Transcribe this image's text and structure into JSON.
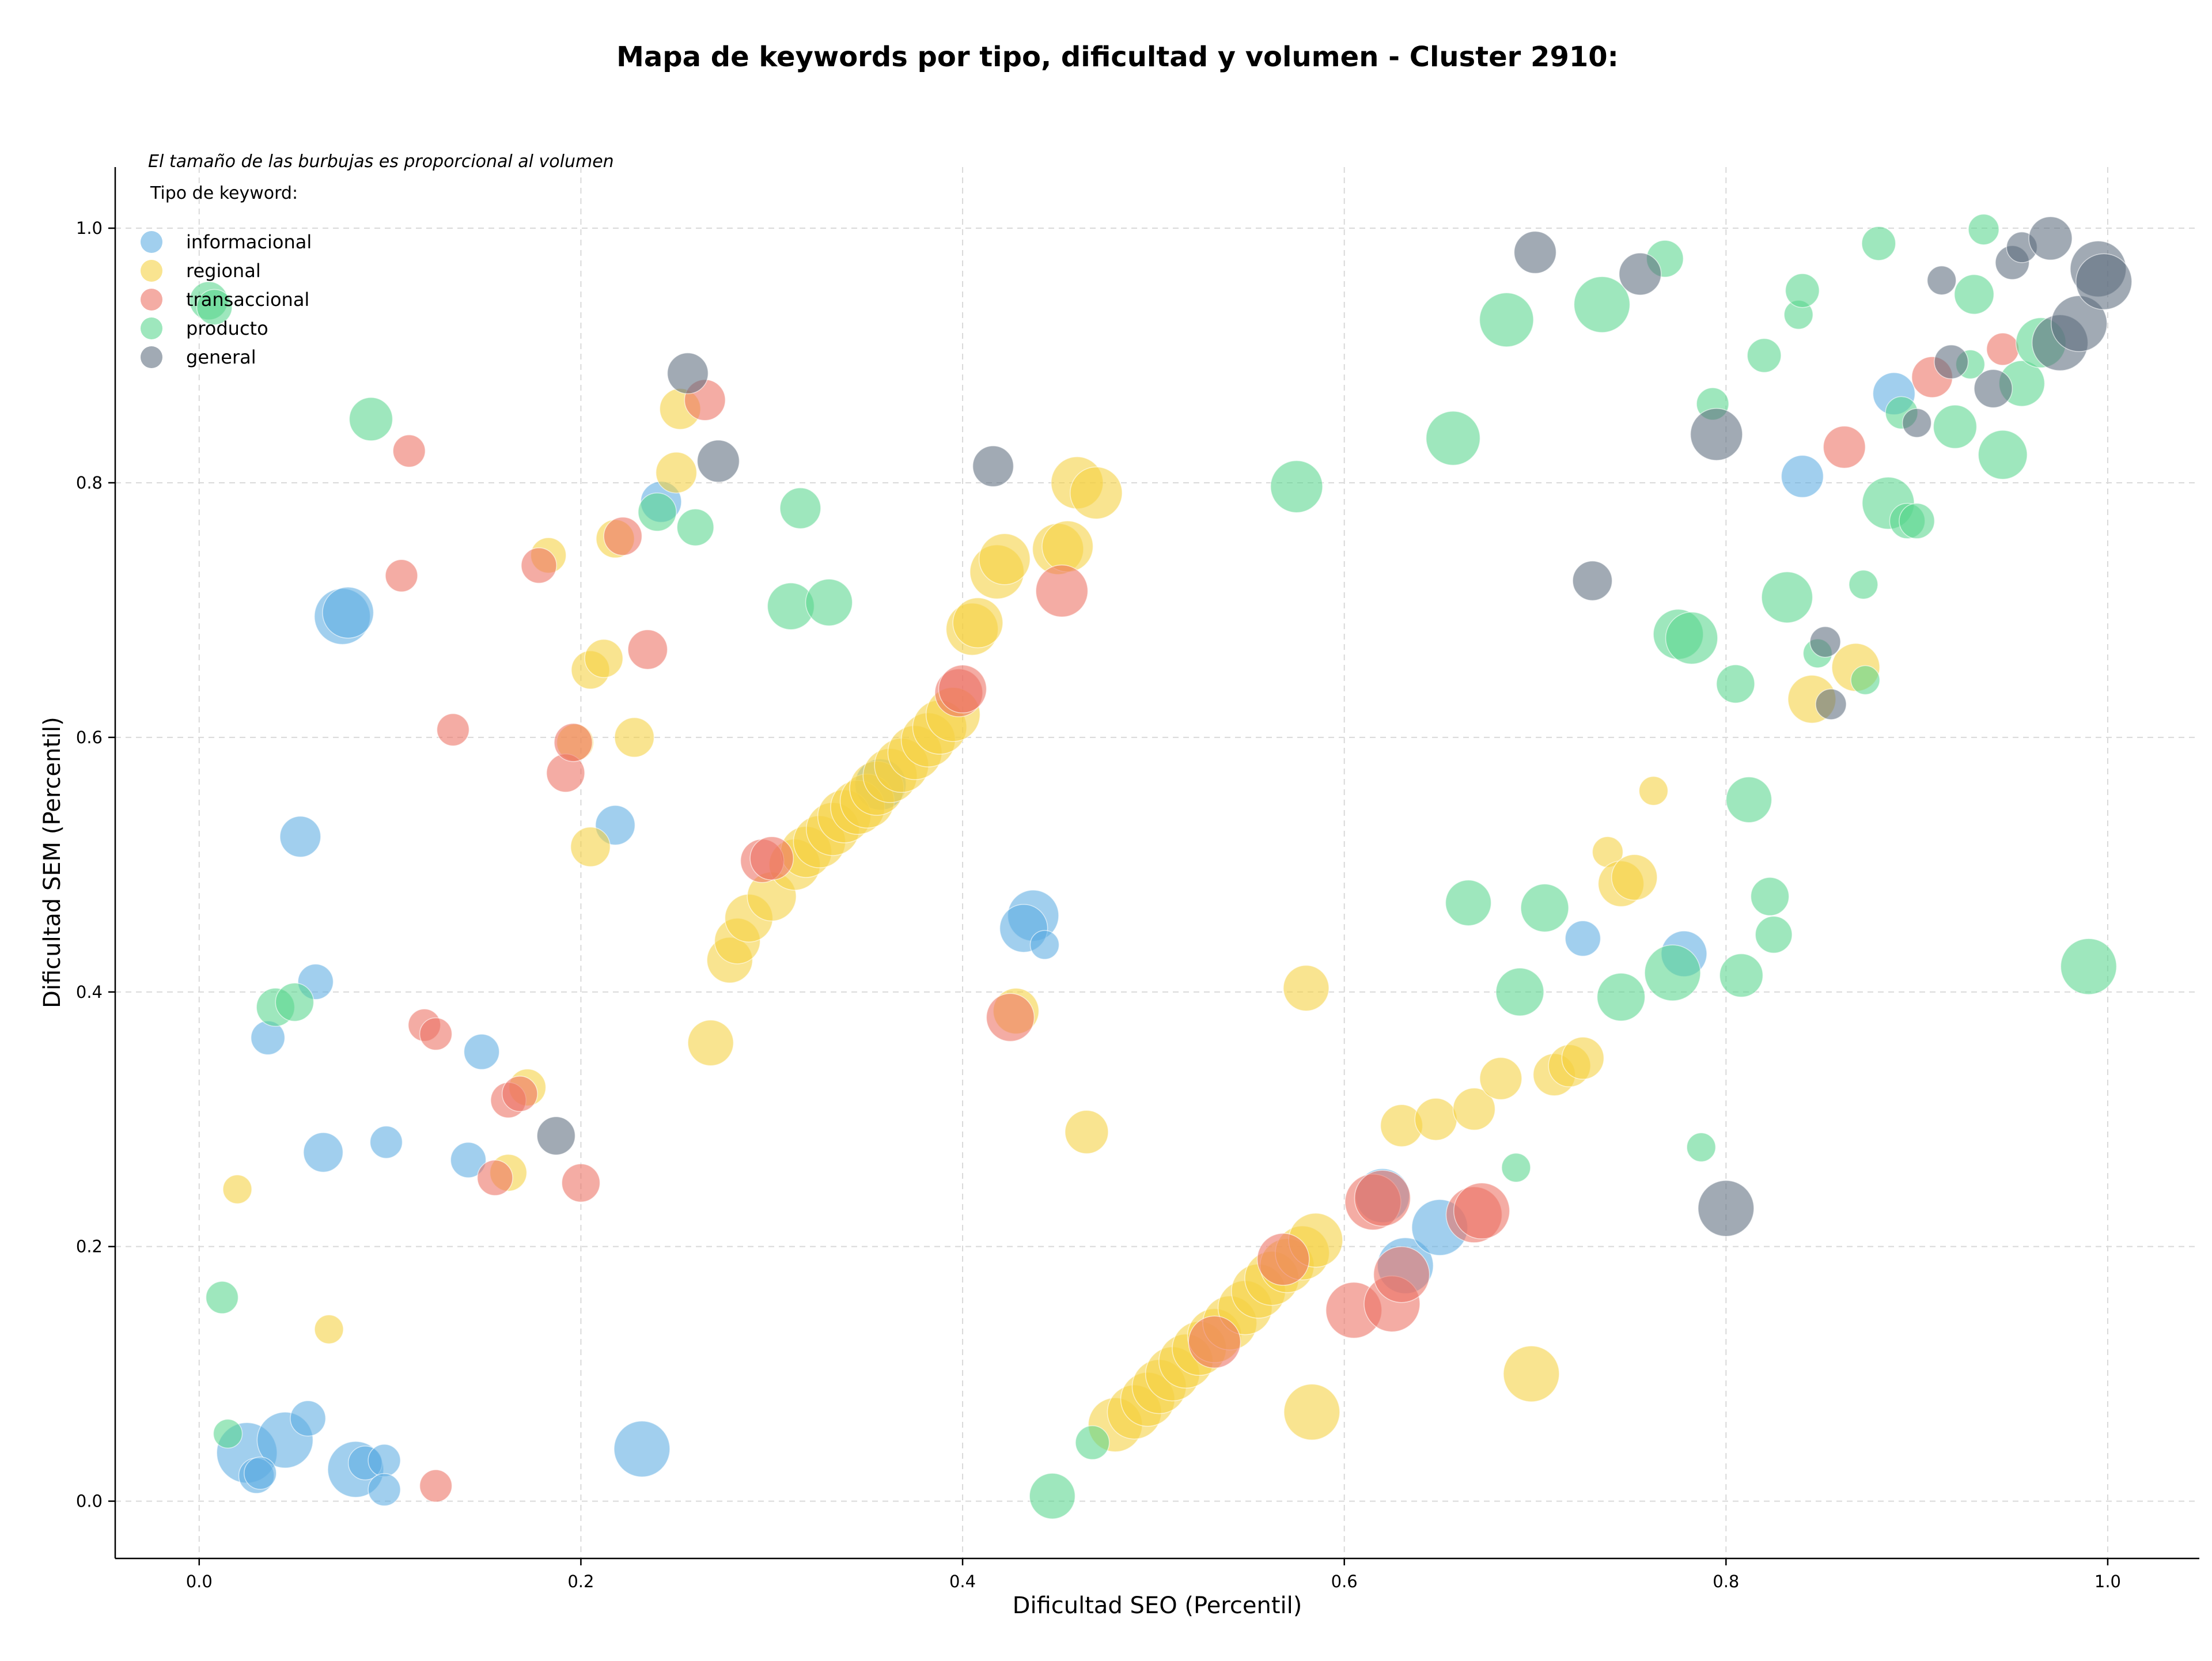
{
  "chart_data": {
    "type": "scatter",
    "title": "Mapa de keywords por tipo, dificultad y volumen - Cluster 2910:",
    "xlabel": "Dificultad SEO (Percentil)",
    "ylabel": "Dificultad SEM (Percentil)",
    "note": "El tamaño de las burbujas es proporcional al volumen",
    "legend_title": "Tipo de keyword:",
    "legend_position": "top-left",
    "grid": true,
    "xlim": [
      -0.044,
      1.048
    ],
    "ylim": [
      -0.045,
      1.048
    ],
    "x_ticks": [
      0.0,
      0.2,
      0.4,
      0.6,
      0.8,
      1.0
    ],
    "y_ticks": [
      0.0,
      0.2,
      0.4,
      0.6,
      0.8,
      1.0
    ],
    "x_tick_labels": [
      "0.0",
      "0.2",
      "0.4",
      "0.6",
      "0.8",
      "1.0"
    ],
    "y_tick_labels": [
      "0.0",
      "0.2",
      "0.4",
      "0.6",
      "0.8",
      "1.0"
    ],
    "series": [
      {
        "name": "informacional",
        "color": "#5dade2",
        "points": [
          [
            0.075,
            0.695,
            3
          ],
          [
            0.078,
            0.698,
            2.5
          ],
          [
            0.053,
            0.522,
            1.6
          ],
          [
            0.061,
            0.408,
            1.2
          ],
          [
            0.036,
            0.364,
            1.1
          ],
          [
            0.148,
            0.353,
            1.2
          ],
          [
            0.065,
            0.274,
            1.5
          ],
          [
            0.098,
            0.282,
            1.0
          ],
          [
            0.141,
            0.268,
            1.2
          ],
          [
            0.218,
            0.531,
            1.5
          ],
          [
            0.242,
            0.785,
            1.6
          ],
          [
            0.025,
            0.038,
            3.5
          ],
          [
            0.045,
            0.048,
            3
          ],
          [
            0.057,
            0.065,
            1.2
          ],
          [
            0.082,
            0.025,
            3
          ],
          [
            0.087,
            0.03,
            1.1
          ],
          [
            0.097,
            0.032,
            1
          ],
          [
            0.097,
            0.009,
            1
          ],
          [
            0.03,
            0.02,
            1.2
          ],
          [
            0.032,
            0.022,
            1
          ],
          [
            0.232,
            0.041,
            3
          ],
          [
            0.357,
            0.563,
            2.5
          ],
          [
            0.437,
            0.46,
            2.5
          ],
          [
            0.432,
            0.45,
            2.2
          ],
          [
            0.443,
            0.437,
            0.8
          ],
          [
            0.62,
            0.24,
            2.8
          ],
          [
            0.632,
            0.185,
            3
          ],
          [
            0.65,
            0.215,
            3
          ],
          [
            0.725,
            0.442,
            1.2
          ],
          [
            0.778,
            0.43,
            2
          ],
          [
            0.84,
            0.805,
            1.7
          ],
          [
            0.888,
            0.87,
            1.7
          ]
        ]
      },
      {
        "name": "regional",
        "color": "#f4d03f",
        "points": [
          [
            0.02,
            0.245,
            0.8
          ],
          [
            0.068,
            0.135,
            0.8
          ],
          [
            0.183,
            0.743,
            1.2
          ],
          [
            0.197,
            0.596,
            1.3
          ],
          [
            0.205,
            0.653,
            1.4
          ],
          [
            0.212,
            0.662,
            1.4
          ],
          [
            0.218,
            0.756,
            1.4
          ],
          [
            0.205,
            0.514,
            1.5
          ],
          [
            0.228,
            0.6,
            1.5
          ],
          [
            0.25,
            0.808,
            1.6
          ],
          [
            0.252,
            0.858,
            1.6
          ],
          [
            0.268,
            0.36,
            2
          ],
          [
            0.172,
            0.325,
            1.3
          ],
          [
            0.162,
            0.258,
            1.3
          ],
          [
            0.278,
            0.425,
            2
          ],
          [
            0.282,
            0.44,
            2
          ],
          [
            0.288,
            0.458,
            2.2
          ],
          [
            0.3,
            0.475,
            2.3
          ],
          [
            0.312,
            0.5,
            2.5
          ],
          [
            0.318,
            0.51,
            2.5
          ],
          [
            0.325,
            0.518,
            2.6
          ],
          [
            0.332,
            0.528,
            2.7
          ],
          [
            0.338,
            0.538,
            2.7
          ],
          [
            0.345,
            0.545,
            2.8
          ],
          [
            0.35,
            0.55,
            2.8
          ],
          [
            0.355,
            0.56,
            2.8
          ],
          [
            0.362,
            0.57,
            2.8
          ],
          [
            0.368,
            0.578,
            2.8
          ],
          [
            0.375,
            0.588,
            2.8
          ],
          [
            0.382,
            0.598,
            2.8
          ],
          [
            0.388,
            0.608,
            2.8
          ],
          [
            0.395,
            0.618,
            2.8
          ],
          [
            0.405,
            0.685,
            2.6
          ],
          [
            0.408,
            0.69,
            2.4
          ],
          [
            0.418,
            0.73,
            2.8
          ],
          [
            0.422,
            0.74,
            2.5
          ],
          [
            0.45,
            0.748,
            2.5
          ],
          [
            0.455,
            0.75,
            2.5
          ],
          [
            0.46,
            0.8,
            2.6
          ],
          [
            0.47,
            0.792,
            2.6
          ],
          [
            0.428,
            0.385,
            2
          ],
          [
            0.465,
            0.29,
            1.8
          ],
          [
            0.48,
            0.06,
            2.8
          ],
          [
            0.49,
            0.07,
            2.8
          ],
          [
            0.497,
            0.08,
            2.8
          ],
          [
            0.503,
            0.09,
            2.8
          ],
          [
            0.51,
            0.1,
            2.8
          ],
          [
            0.517,
            0.11,
            2.8
          ],
          [
            0.524,
            0.12,
            2.8
          ],
          [
            0.532,
            0.13,
            2.8
          ],
          [
            0.54,
            0.14,
            2.8
          ],
          [
            0.548,
            0.152,
            2.8
          ],
          [
            0.555,
            0.165,
            2.8
          ],
          [
            0.562,
            0.175,
            2.8
          ],
          [
            0.57,
            0.185,
            2.8
          ],
          [
            0.578,
            0.195,
            2.8
          ],
          [
            0.585,
            0.205,
            2.8
          ],
          [
            0.58,
            0.403,
            2
          ],
          [
            0.583,
            0.07,
            3
          ],
          [
            0.63,
            0.295,
            1.7
          ],
          [
            0.648,
            0.3,
            1.7
          ],
          [
            0.668,
            0.308,
            1.7
          ],
          [
            0.682,
            0.332,
            1.7
          ],
          [
            0.698,
            0.1,
            3
          ],
          [
            0.71,
            0.335,
            1.7
          ],
          [
            0.718,
            0.342,
            1.7
          ],
          [
            0.725,
            0.348,
            1.7
          ],
          [
            0.738,
            0.51,
            0.9
          ],
          [
            0.745,
            0.485,
            2
          ],
          [
            0.752,
            0.49,
            2
          ],
          [
            0.762,
            0.558,
            0.8
          ],
          [
            0.845,
            0.63,
            2.2
          ],
          [
            0.868,
            0.655,
            2.2
          ]
        ]
      },
      {
        "name": "transaccional",
        "color": "#ec7063",
        "points": [
          [
            0.11,
            0.825,
            1
          ],
          [
            0.106,
            0.727,
            1
          ],
          [
            0.133,
            0.606,
            1
          ],
          [
            0.178,
            0.735,
            1.2
          ],
          [
            0.192,
            0.572,
            1.4
          ],
          [
            0.196,
            0.596,
            1.4
          ],
          [
            0.222,
            0.758,
            1.4
          ],
          [
            0.235,
            0.669,
            1.5
          ],
          [
            0.265,
            0.865,
            1.6
          ],
          [
            0.118,
            0.374,
            1
          ],
          [
            0.124,
            0.367,
            1
          ],
          [
            0.162,
            0.315,
            1.2
          ],
          [
            0.168,
            0.32,
            1.2
          ],
          [
            0.155,
            0.254,
            1.2
          ],
          [
            0.2,
            0.25,
            1.4
          ],
          [
            0.124,
            0.012,
            1
          ],
          [
            0.295,
            0.503,
            1.8
          ],
          [
            0.3,
            0.505,
            1.8
          ],
          [
            0.398,
            0.635,
            2.2
          ],
          [
            0.4,
            0.638,
            2.2
          ],
          [
            0.425,
            0.38,
            2.2
          ],
          [
            0.452,
            0.715,
            2.6
          ],
          [
            0.532,
            0.125,
            2.6
          ],
          [
            0.568,
            0.19,
            2.6
          ],
          [
            0.605,
            0.15,
            3
          ],
          [
            0.615,
            0.235,
            3
          ],
          [
            0.62,
            0.238,
            3
          ],
          [
            0.625,
            0.155,
            3
          ],
          [
            0.63,
            0.178,
            3
          ],
          [
            0.668,
            0.225,
            3
          ],
          [
            0.672,
            0.228,
            3
          ],
          [
            0.862,
            0.828,
            1.7
          ],
          [
            0.908,
            0.883,
            1.6
          ],
          [
            0.945,
            0.905,
            1
          ]
        ]
      },
      {
        "name": "producto",
        "color": "#58d68d",
        "points": [
          [
            0.005,
            0.943,
            1.4
          ],
          [
            0.008,
            0.938,
            1.2
          ],
          [
            0.09,
            0.85,
            1.8
          ],
          [
            0.04,
            0.388,
            1.4
          ],
          [
            0.05,
            0.392,
            1.4
          ],
          [
            0.012,
            0.16,
            1
          ],
          [
            0.015,
            0.053,
            0.8
          ],
          [
            0.24,
            0.777,
            1.4
          ],
          [
            0.26,
            0.765,
            1.3
          ],
          [
            0.315,
            0.78,
            1.6
          ],
          [
            0.31,
            0.703,
            2.1
          ],
          [
            0.33,
            0.706,
            2.1
          ],
          [
            0.447,
            0.004,
            2
          ],
          [
            0.468,
            0.046,
            1.1
          ],
          [
            0.575,
            0.797,
            2.6
          ],
          [
            0.657,
            0.835,
            2.8
          ],
          [
            0.665,
            0.47,
            2
          ],
          [
            0.685,
            0.928,
            2.8
          ],
          [
            0.69,
            0.262,
            0.8
          ],
          [
            0.692,
            0.4,
            2.2
          ],
          [
            0.705,
            0.466,
            2.2
          ],
          [
            0.735,
            0.94,
            3
          ],
          [
            0.745,
            0.396,
            2.2
          ],
          [
            0.768,
            0.976,
            1.3
          ],
          [
            0.772,
            0.415,
            3
          ],
          [
            0.775,
            0.681,
            2.4
          ],
          [
            0.782,
            0.678,
            2.6
          ],
          [
            0.787,
            0.278,
            0.8
          ],
          [
            0.793,
            0.862,
            1
          ],
          [
            0.805,
            0.642,
            1.4
          ],
          [
            0.808,
            0.413,
            1.8
          ],
          [
            0.812,
            0.551,
            2
          ],
          [
            0.82,
            0.9,
            1.1
          ],
          [
            0.823,
            0.475,
            1.4
          ],
          [
            0.825,
            0.445,
            1.3
          ],
          [
            0.832,
            0.71,
            2.5
          ],
          [
            0.838,
            0.932,
            0.8
          ],
          [
            0.84,
            0.951,
            1.1
          ],
          [
            0.848,
            0.666,
            0.8
          ],
          [
            0.872,
            0.72,
            0.8
          ],
          [
            0.873,
            0.645,
            0.8
          ],
          [
            0.88,
            0.988,
            1.1
          ],
          [
            0.885,
            0.784,
            2.6
          ],
          [
            0.892,
            0.855,
            1
          ],
          [
            0.895,
            0.77,
            1.2
          ],
          [
            0.9,
            0.77,
            1.2
          ],
          [
            0.92,
            0.844,
            1.8
          ],
          [
            0.928,
            0.893,
            0.8
          ],
          [
            0.93,
            0.948,
            1.5
          ],
          [
            0.935,
            0.999,
            0.9
          ],
          [
            0.945,
            0.822,
            2.3
          ],
          [
            0.955,
            0.878,
            2
          ],
          [
            0.965,
            0.91,
            2.4
          ],
          [
            0.99,
            0.42,
            3
          ]
        ]
      },
      {
        "name": "general",
        "color": "#5d6d7e",
        "points": [
          [
            0.256,
            0.886,
            1.6
          ],
          [
            0.272,
            0.817,
            1.7
          ],
          [
            0.187,
            0.287,
            1.4
          ],
          [
            0.416,
            0.813,
            1.6
          ],
          [
            0.7,
            0.981,
            1.7
          ],
          [
            0.73,
            0.723,
            1.5
          ],
          [
            0.755,
            0.964,
            1.7
          ],
          [
            0.795,
            0.838,
            2.6
          ],
          [
            0.8,
            0.23,
            3
          ],
          [
            0.852,
            0.675,
            0.9
          ],
          [
            0.855,
            0.626,
            0.9
          ],
          [
            0.913,
            0.959,
            0.8
          ],
          [
            0.918,
            0.895,
            1.1
          ],
          [
            0.9,
            0.847,
            0.8
          ],
          [
            0.94,
            0.874,
            1.4
          ],
          [
            0.95,
            0.973,
            1.1
          ],
          [
            0.955,
            0.985,
            0.9
          ],
          [
            0.97,
            0.992,
            1.8
          ],
          [
            0.975,
            0.91,
            3
          ],
          [
            0.985,
            0.925,
            3
          ],
          [
            0.995,
            0.968,
            3
          ],
          [
            0.998,
            0.958,
            3
          ]
        ]
      }
    ]
  }
}
